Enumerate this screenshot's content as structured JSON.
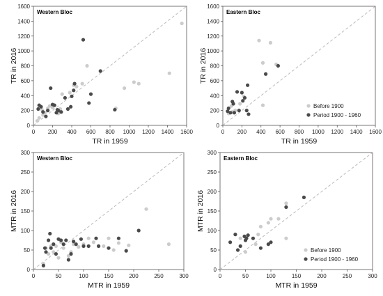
{
  "colors": {
    "before_1900": "#cccccc",
    "period_1900_1960": "#4a4a4a",
    "diagonal": "#bbbbbb",
    "frame": "#555555"
  },
  "chart_data": [
    {
      "type": "scatter",
      "title": "Western Bloc",
      "xlabel": "TR in 1959",
      "ylabel": "TR in 2016",
      "xlim": [
        0,
        1600
      ],
      "ylim": [
        0,
        1600
      ],
      "xticks": [
        "0",
        "200",
        "400",
        "600",
        "800",
        "1000",
        "1200",
        "1400",
        "1600"
      ],
      "yticks": [
        "0",
        "200",
        "400",
        "600",
        "800",
        "1000",
        "1200",
        "1400",
        "1600"
      ],
      "diagonal": true,
      "legend": null,
      "series": [
        {
          "key": "before_1900",
          "points": [
            [
              1550,
              1370
            ],
            [
              1420,
              700
            ],
            [
              1100,
              560
            ],
            [
              1050,
              580
            ],
            [
              950,
              500
            ],
            [
              860,
              230
            ],
            [
              560,
              800
            ],
            [
              510,
              560
            ],
            [
              450,
              520
            ],
            [
              420,
              540
            ],
            [
              380,
              440
            ],
            [
              300,
              420
            ],
            [
              280,
              220
            ],
            [
              260,
              160
            ],
            [
              200,
              240
            ],
            [
              170,
              260
            ],
            [
              150,
              230
            ],
            [
              120,
              170
            ],
            [
              100,
              140
            ],
            [
              90,
              210
            ],
            [
              60,
              100
            ],
            [
              40,
              60
            ]
          ]
        },
        {
          "key": "period_1900_1960",
          "points": [
            [
              520,
              1150
            ],
            [
              700,
              730
            ],
            [
              850,
              210
            ],
            [
              600,
              420
            ],
            [
              580,
              300
            ],
            [
              430,
              560
            ],
            [
              420,
              470
            ],
            [
              400,
              390
            ],
            [
              390,
              250
            ],
            [
              360,
              220
            ],
            [
              330,
              370
            ],
            [
              290,
              180
            ],
            [
              260,
              200
            ],
            [
              250,
              210
            ],
            [
              240,
              170
            ],
            [
              220,
              270
            ],
            [
              200,
              280
            ],
            [
              180,
              500
            ],
            [
              150,
              200
            ],
            [
              100,
              180
            ],
            [
              80,
              250
            ],
            [
              60,
              270
            ],
            [
              50,
              220
            ],
            [
              130,
              120
            ]
          ]
        }
      ]
    },
    {
      "type": "scatter",
      "title": "Eastern Bloc",
      "xlabel": "TR in 1959",
      "ylabel": "TR in 2016",
      "xlim": [
        0,
        1600
      ],
      "ylim": [
        0,
        1600
      ],
      "xticks": [
        "0",
        "200",
        "400",
        "600",
        "800",
        "1000",
        "1200",
        "1400",
        "1600"
      ],
      "yticks": [
        "0",
        "200",
        "400",
        "600",
        "800",
        "1000",
        "1200",
        "1400",
        "1600"
      ],
      "diagonal": true,
      "legend": [
        "Before 1900",
        "Period 1900 - 1960"
      ],
      "series": [
        {
          "key": "before_1900",
          "points": [
            [
              380,
              1140
            ],
            [
              500,
              1110
            ],
            [
              420,
              840
            ],
            [
              560,
              820
            ],
            [
              420,
              270
            ],
            [
              220,
              390
            ],
            [
              180,
              290
            ],
            [
              130,
              200
            ],
            [
              90,
              260
            ],
            [
              100,
              180
            ],
            [
              60,
              160
            ]
          ]
        },
        {
          "key": "period_1900_1960",
          "points": [
            [
              580,
              800
            ],
            [
              450,
              690
            ],
            [
              260,
              540
            ],
            [
              230,
              370
            ],
            [
              250,
              200
            ],
            [
              270,
              150
            ],
            [
              210,
              330
            ],
            [
              200,
              440
            ],
            [
              170,
              200
            ],
            [
              150,
              450
            ],
            [
              120,
              170
            ],
            [
              110,
              290
            ],
            [
              100,
              320
            ],
            [
              80,
              170
            ],
            [
              60,
              230
            ],
            [
              50,
              190
            ]
          ]
        }
      ]
    },
    {
      "type": "scatter",
      "title": "Western Bloc",
      "xlabel": "MTR in 1959",
      "ylabel": "MTR in 2016",
      "xlim": [
        0,
        300
      ],
      "ylim": [
        0,
        300
      ],
      "xticks": [
        "0",
        "50",
        "100",
        "150",
        "200",
        "250",
        "300"
      ],
      "yticks": [
        "0",
        "50",
        "100",
        "150",
        "200",
        "250",
        "300"
      ],
      "diagonal": true,
      "legend": null,
      "series": [
        {
          "key": "before_1900",
          "points": [
            [
              225,
              155
            ],
            [
              270,
              65
            ],
            [
              190,
              62
            ],
            [
              170,
              68
            ],
            [
              160,
              50
            ],
            [
              150,
              80
            ],
            [
              140,
              60
            ],
            [
              130,
              60
            ],
            [
              120,
              70
            ],
            [
              110,
              80
            ],
            [
              100,
              65
            ],
            [
              90,
              58
            ],
            [
              80,
              65
            ],
            [
              75,
              45
            ],
            [
              70,
              35
            ],
            [
              60,
              55
            ],
            [
              55,
              70
            ],
            [
              50,
              30
            ],
            [
              45,
              60
            ],
            [
              40,
              45
            ],
            [
              35,
              60
            ],
            [
              30,
              40
            ],
            [
              25,
              55
            ],
            [
              20,
              15
            ]
          ]
        },
        {
          "key": "period_1900_1960",
          "points": [
            [
              210,
              100
            ],
            [
              185,
              48
            ],
            [
              170,
              80
            ],
            [
              150,
              55
            ],
            [
              130,
              60
            ],
            [
              125,
              80
            ],
            [
              110,
              60
            ],
            [
              100,
              60
            ],
            [
              95,
              78
            ],
            [
              85,
              65
            ],
            [
              80,
              72
            ],
            [
              75,
              40
            ],
            [
              70,
              25
            ],
            [
              65,
              75
            ],
            [
              60,
              65
            ],
            [
              55,
              75
            ],
            [
              50,
              78
            ],
            [
              45,
              40
            ],
            [
              40,
              65
            ],
            [
              35,
              55
            ],
            [
              33,
              92
            ],
            [
              30,
              75
            ],
            [
              25,
              45
            ],
            [
              23,
              55
            ],
            [
              20,
              10
            ]
          ]
        }
      ]
    },
    {
      "type": "scatter",
      "title": "Eastern Bloc",
      "xlabel": "MTR in 1959",
      "ylabel": "MTR in 2016",
      "xlim": [
        0,
        300
      ],
      "ylim": [
        0,
        300
      ],
      "xticks": [
        "0",
        "50",
        "100",
        "150",
        "200",
        "250",
        "300"
      ],
      "yticks": [
        "0",
        "50",
        "100",
        "150",
        "200",
        "250",
        "300"
      ],
      "diagonal": true,
      "legend": [
        "Before 1900",
        "Period 1900 - 1960"
      ],
      "series": [
        {
          "key": "before_1900",
          "points": [
            [
              130,
              170
            ],
            [
              115,
              130
            ],
            [
              100,
              130
            ],
            [
              95,
              120
            ],
            [
              80,
              110
            ],
            [
              75,
              90
            ],
            [
              130,
              80
            ],
            [
              70,
              65
            ],
            [
              50,
              45
            ],
            [
              40,
              80
            ]
          ]
        },
        {
          "key": "period_1900_1960",
          "points": [
            [
              165,
              185
            ],
            [
              130,
              160
            ],
            [
              100,
              70
            ],
            [
              95,
              65
            ],
            [
              80,
              55
            ],
            [
              65,
              80
            ],
            [
              55,
              88
            ],
            [
              52,
              80
            ],
            [
              50,
              75
            ],
            [
              48,
              85
            ],
            [
              40,
              60
            ],
            [
              35,
              50
            ],
            [
              30,
              90
            ],
            [
              20,
              70
            ]
          ]
        }
      ]
    }
  ]
}
